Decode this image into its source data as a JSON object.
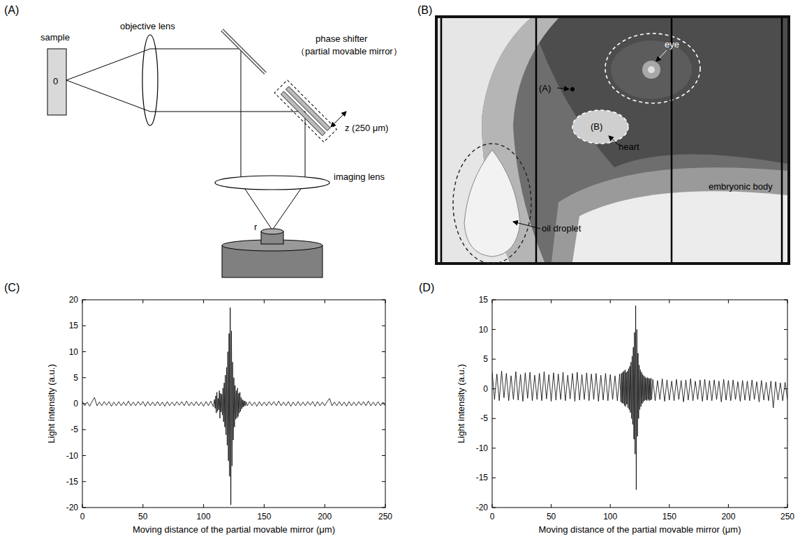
{
  "panel_labels": [
    "(A)",
    "(B)",
    "(C)",
    "(D)"
  ],
  "diagram": {
    "sample": "sample",
    "origin": "0",
    "objective_lens": "objective lens",
    "phase_shifter": "phase shifter",
    "phase_shifter_note": "（partial movable mirror）",
    "z": "z (250 μm)",
    "imaging_lens": "imaging lens",
    "r": "r"
  },
  "image": {
    "labels": {
      "point_a": "(A)",
      "eye": "eye",
      "region_b": "(B)",
      "heart": "heart",
      "embryonic_body": "embryonic body",
      "oil_droplet": "oil droplet"
    }
  },
  "chart_data": [
    {
      "type": "line",
      "color": "#000000",
      "x_label": "Moving distance of the partial movable mirror (μm)",
      "y_label": "Light intensity (a.u.)",
      "xlim": [
        0,
        250
      ],
      "ylim": [
        -20,
        20
      ],
      "xticks": [
        0,
        50,
        100,
        150,
        200,
        250
      ],
      "yticks": [
        -20,
        -15,
        -10,
        -5,
        0,
        5,
        10,
        15,
        20
      ],
      "x": [
        0,
        2,
        4,
        6,
        8,
        10,
        12,
        14,
        16,
        18,
        20,
        22,
        24,
        26,
        28,
        30,
        32,
        34,
        36,
        38,
        40,
        42,
        44,
        46,
        48,
        50,
        52,
        54,
        56,
        58,
        60,
        62,
        64,
        66,
        68,
        70,
        72,
        74,
        76,
        78,
        80,
        82,
        84,
        86,
        88,
        90,
        92,
        94,
        96,
        98,
        100,
        102,
        104,
        106,
        108,
        109,
        109.5,
        110,
        110.5,
        111,
        111.5,
        112,
        112.5,
        113,
        113.5,
        114,
        114.5,
        115,
        115.5,
        116,
        116.5,
        117,
        117.5,
        118,
        118.5,
        119,
        119.5,
        120,
        120.5,
        121,
        121.5,
        122,
        122.5,
        123,
        123.5,
        124,
        124.5,
        125,
        125.5,
        126,
        126.5,
        127,
        127.5,
        128,
        128.5,
        129,
        129.5,
        130,
        130.5,
        131,
        131.5,
        132,
        132.5,
        133,
        133.5,
        134,
        134.5,
        135,
        136,
        138,
        140,
        142,
        144,
        146,
        148,
        150,
        152,
        154,
        156,
        158,
        160,
        162,
        164,
        166,
        168,
        170,
        172,
        174,
        176,
        178,
        180,
        182,
        184,
        186,
        188,
        190,
        192,
        194,
        196,
        198,
        200,
        202,
        204,
        206,
        208,
        210,
        212,
        214,
        216,
        218,
        220,
        222,
        224,
        226,
        228,
        230,
        232,
        234,
        236,
        238,
        240,
        242,
        244,
        246,
        248,
        250
      ],
      "values": [
        0.4,
        -0.4,
        0.3,
        -0.5,
        0.4,
        1.2,
        -0.4,
        0.3,
        -0.4,
        0.4,
        -0.3,
        0.4,
        -0.5,
        0.3,
        -0.4,
        0.4,
        -0.4,
        0.3,
        -0.4,
        0.5,
        -0.4,
        0.3,
        -0.4,
        0.4,
        -0.3,
        0.4,
        -0.5,
        0.4,
        -0.4,
        0.3,
        -0.4,
        0.4,
        -0.4,
        0.3,
        -0.5,
        0.4,
        -0.4,
        0.3,
        -0.4,
        0.4,
        -0.3,
        0.4,
        -0.4,
        0.5,
        -0.4,
        0.3,
        -0.4,
        0.4,
        -0.4,
        0.3,
        -0.5,
        0.4,
        -0.4,
        0.5,
        -0.6,
        0.8,
        -0.9,
        1.5,
        -1.8,
        2.2,
        -1.5,
        1.0,
        -1.2,
        2.5,
        -2.8,
        2.0,
        -1.6,
        1.8,
        -2.2,
        3.0,
        -3.5,
        4.0,
        -4.5,
        5.5,
        -6.0,
        7.0,
        -8.0,
        10.0,
        -11.0,
        13.5,
        -14.0,
        18.5,
        -19.5,
        14.0,
        -12.0,
        8.0,
        -7.0,
        5.0,
        -4.5,
        3.5,
        -3.0,
        2.5,
        -2.8,
        3.0,
        -2.5,
        2.0,
        -1.8,
        2.2,
        -1.5,
        1.2,
        -1.0,
        0.8,
        -0.7,
        0.6,
        -0.5,
        0.5,
        -0.4,
        0.4,
        -0.4,
        0.4,
        -0.4,
        0.3,
        -0.5,
        0.4,
        -0.4,
        0.3,
        -0.4,
        0.4,
        -0.3,
        0.4,
        -0.4,
        0.5,
        -0.4,
        0.3,
        -0.4,
        0.4,
        -0.5,
        0.3,
        -0.4,
        0.4,
        -0.4,
        0.3,
        -0.4,
        0.4,
        -0.3,
        0.4,
        -0.5,
        0.4,
        -0.4,
        0.3,
        -0.4,
        0.4,
        1.0,
        -0.4,
        0.3,
        -0.4,
        0.4,
        -0.4,
        0.3,
        -0.5,
        0.4,
        -0.4,
        0.3,
        -0.4,
        0.4,
        -0.3,
        0.4,
        -0.4,
        0.5,
        -0.4,
        0.3,
        -0.4,
        0.4,
        -0.4,
        0.3,
        -0.4
      ]
    },
    {
      "type": "line",
      "color": "#000000",
      "x_label": "Moving distance of the partial movable mirror (μm)",
      "y_label": "Light intensity (a.u.)",
      "xlim": [
        0,
        250
      ],
      "ylim": [
        -20,
        15
      ],
      "xticks": [
        0,
        50,
        100,
        150,
        200,
        250
      ],
      "yticks": [
        -20,
        -15,
        -10,
        -5,
        0,
        5,
        10,
        15
      ],
      "x": [
        0,
        2,
        4,
        6,
        8,
        10,
        12,
        14,
        16,
        18,
        20,
        22,
        24,
        26,
        28,
        30,
        32,
        34,
        36,
        38,
        40,
        42,
        44,
        46,
        48,
        50,
        52,
        54,
        56,
        58,
        60,
        62,
        64,
        66,
        68,
        70,
        72,
        74,
        76,
        78,
        80,
        82,
        84,
        86,
        88,
        90,
        92,
        94,
        96,
        98,
        100,
        102,
        104,
        106,
        108,
        109,
        109.5,
        110,
        110.5,
        111,
        111.5,
        112,
        112.5,
        113,
        113.5,
        114,
        114.5,
        115,
        115.5,
        116,
        116.5,
        117,
        117.5,
        118,
        118.5,
        119,
        119.5,
        120,
        120.5,
        121,
        121.5,
        122,
        122.5,
        123,
        123.5,
        124,
        124.5,
        125,
        125.5,
        126,
        126.5,
        127,
        127.5,
        128,
        128.5,
        129,
        129.5,
        130,
        130.5,
        131,
        131.5,
        132,
        132.5,
        133,
        133.5,
        134,
        134.5,
        135,
        136,
        138,
        140,
        142,
        144,
        146,
        148,
        150,
        152,
        154,
        156,
        158,
        160,
        162,
        164,
        166,
        168,
        170,
        172,
        174,
        176,
        178,
        180,
        182,
        184,
        186,
        188,
        190,
        192,
        194,
        196,
        198,
        200,
        202,
        204,
        206,
        208,
        210,
        212,
        214,
        216,
        218,
        220,
        222,
        224,
        226,
        228,
        230,
        232,
        234,
        236,
        238,
        240,
        242,
        244,
        246,
        248,
        250
      ],
      "values": [
        2.8,
        -1.8,
        2.5,
        -2.0,
        3.0,
        -1.5,
        2.6,
        -2.0,
        2.2,
        -1.8,
        2.9,
        -1.9,
        2.4,
        -2.1,
        2.7,
        -1.6,
        2.8,
        -2.0,
        2.3,
        -1.8,
        2.6,
        -2.0,
        2.9,
        -1.7,
        2.4,
        -2.1,
        2.7,
        -1.9,
        2.5,
        -1.8,
        2.8,
        -2.0,
        2.3,
        -1.7,
        2.6,
        -2.1,
        2.8,
        -1.9,
        2.4,
        -1.8,
        2.7,
        -2.0,
        2.5,
        -1.8,
        2.6,
        -2.1,
        2.3,
        -1.9,
        2.6,
        -2.0,
        2.4,
        -1.8,
        2.2,
        -2.0,
        2.5,
        -2.2,
        2.6,
        -2.4,
        2.8,
        -2.5,
        3.0,
        -2.8,
        3.2,
        -3.0,
        2.8,
        -2.6,
        3.0,
        -3.2,
        3.4,
        -3.5,
        3.8,
        -4.0,
        4.5,
        -5.0,
        5.5,
        -6.0,
        7.0,
        -8.5,
        9.5,
        -11.0,
        14.0,
        -17.0,
        10.0,
        -8.0,
        6.0,
        -5.0,
        4.0,
        -3.5,
        3.2,
        -3.0,
        2.8,
        -2.5,
        2.4,
        -2.2,
        2.2,
        -2.0,
        2.0,
        -1.9,
        1.8,
        -2.0,
        1.9,
        -1.8,
        1.8,
        -2.0,
        1.7,
        -1.9,
        1.8,
        -1.8,
        1.6,
        -2.0,
        1.4,
        -1.8,
        1.7,
        -2.1,
        1.5,
        -1.9,
        1.3,
        -2.0,
        1.6,
        -1.8,
        1.4,
        -2.2,
        1.5,
        -1.9,
        1.7,
        -2.0,
        1.3,
        -1.8,
        1.5,
        -2.1,
        1.6,
        -1.9,
        1.4,
        -2.0,
        1.5,
        -1.8,
        1.3,
        -2.2,
        1.6,
        -1.9,
        1.4,
        -2.0,
        1.5,
        -1.8,
        1.2,
        -2.1,
        1.4,
        -1.9,
        1.3,
        -2.0,
        1.5,
        -1.8,
        1.2,
        -2.2,
        1.4,
        -1.9,
        1.1,
        -2.0,
        1.3,
        -3.2,
        1.2,
        -1.9,
        1.0,
        -2.0,
        1.1,
        -1.8
      ]
    }
  ]
}
